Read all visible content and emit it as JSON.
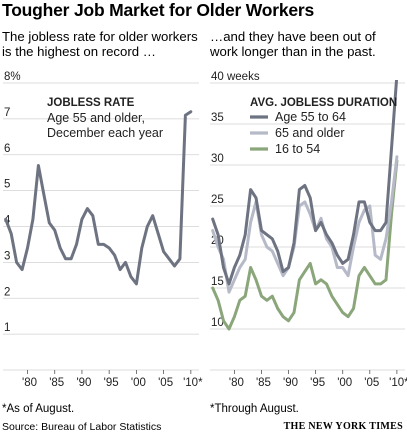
{
  "header": {
    "title": "Tougher Job Market for Older Workers"
  },
  "panels": {
    "left": {
      "subtitle_line1": "The jobless rate for older workers",
      "subtitle_line2": "is the highest on record …",
      "footnote": "*As of August."
    },
    "right": {
      "subtitle_line1": "…and they have been out of",
      "subtitle_line2": "work longer than in the past.",
      "footnote": "*Through August."
    }
  },
  "footer": {
    "source": "Source: Bureau of Labor Statistics",
    "credit": "THE NEW YORK TIMES"
  },
  "chart_data": [
    {
      "type": "line",
      "title": "JOBLESS RATE",
      "subtitle_lines": [
        "Age 55 and older,",
        "December each year"
      ],
      "ylim": [
        0,
        8
      ],
      "y_ticks": [
        0,
        1,
        2,
        3,
        4,
        5,
        6,
        7,
        8
      ],
      "y_tick_labels": [
        "",
        "1",
        "2",
        "3",
        "4",
        "5",
        "6",
        "7",
        "8%"
      ],
      "xlim": [
        1975.5,
        2011.5
      ],
      "x_ticks": [
        1980,
        1985,
        1990,
        1995,
        2000,
        2005,
        2010
      ],
      "x_tick_labels": [
        "'80",
        "'85",
        "'90",
        "'95",
        "'00",
        "'05",
        "'10*"
      ],
      "grid": true,
      "series": [
        {
          "name": "",
          "color": "#6e7382",
          "x": [
            1976,
            1977,
            1978,
            1979,
            1980,
            1981,
            1982,
            1983,
            1984,
            1985,
            1986,
            1987,
            1988,
            1989,
            1990,
            1991,
            1992,
            1993,
            1994,
            1995,
            1996,
            1997,
            1998,
            1999,
            2000,
            2001,
            2002,
            2003,
            2004,
            2005,
            2006,
            2007,
            2008,
            2009,
            2010
          ],
          "values": [
            4.2,
            3.8,
            3.0,
            2.8,
            3.4,
            4.2,
            5.7,
            4.9,
            4.1,
            3.9,
            3.4,
            3.1,
            3.1,
            3.5,
            4.2,
            4.5,
            4.3,
            3.5,
            3.5,
            3.4,
            3.2,
            2.8,
            3.0,
            2.6,
            2.4,
            3.4,
            4.0,
            4.3,
            3.8,
            3.3,
            3.1,
            2.9,
            3.1,
            7.1,
            7.2
          ]
        }
      ]
    },
    {
      "type": "line",
      "title": "AVG. JOBLESS DURATION",
      "ylim": [
        5,
        40
      ],
      "y_ticks": [
        5,
        10,
        15,
        20,
        25,
        30,
        35,
        40
      ],
      "y_tick_labels": [
        "",
        "10",
        "15",
        "20",
        "25",
        "30",
        "35",
        "40 weeks"
      ],
      "xlim": [
        1975.5,
        2011.5
      ],
      "x_ticks": [
        1980,
        1985,
        1990,
        1995,
        2000,
        2005,
        2010
      ],
      "x_tick_labels": [
        "'80",
        "'85",
        "'90",
        "'95",
        "'00",
        "'05",
        "'10*"
      ],
      "grid": true,
      "legend": "top-right",
      "series": [
        {
          "name": "Age 55 to 64",
          "color": "#6e7382",
          "x": [
            1976,
            1977,
            1978,
            1979,
            1980,
            1981,
            1982,
            1983,
            1984,
            1985,
            1986,
            1987,
            1988,
            1989,
            1990,
            1991,
            1992,
            1993,
            1994,
            1995,
            1996,
            1997,
            1998,
            1999,
            2000,
            2001,
            2002,
            2003,
            2004,
            2005,
            2006,
            2007,
            2008,
            2009,
            2010
          ],
          "values": [
            23.4,
            21.5,
            17.5,
            15.5,
            17.5,
            19.0,
            21.5,
            27.0,
            26.0,
            22.0,
            21.5,
            21.0,
            19.5,
            17.0,
            17.5,
            20.5,
            27.0,
            27.5,
            26.0,
            22.0,
            23.0,
            21.5,
            20.5,
            19.0,
            18.0,
            18.5,
            21.5,
            25.5,
            25.5,
            23.0,
            22.0,
            22.0,
            23.0,
            32.0,
            41.0
          ]
        },
        {
          "name": "65 and older",
          "color": "#b6bac8",
          "x": [
            1976,
            1977,
            1978,
            1979,
            1980,
            1981,
            1982,
            1983,
            1984,
            1985,
            1986,
            1987,
            1988,
            1989,
            1990,
            1991,
            1992,
            1993,
            1994,
            1995,
            1996,
            1997,
            1998,
            1999,
            2000,
            2001,
            2002,
            2003,
            2004,
            2005,
            2006,
            2007,
            2008,
            2009,
            2010
          ],
          "values": [
            22.0,
            20.0,
            18.5,
            14.5,
            16.0,
            17.5,
            18.5,
            23.0,
            25.5,
            21.5,
            20.0,
            19.5,
            18.0,
            16.5,
            17.5,
            20.0,
            25.0,
            25.5,
            24.0,
            22.0,
            23.5,
            21.0,
            20.0,
            17.5,
            17.5,
            16.5,
            20.0,
            23.0,
            24.5,
            25.0,
            19.0,
            18.5,
            21.0,
            25.5,
            31.0
          ]
        },
        {
          "name": "16 to 54",
          "color": "#8ba67a",
          "x": [
            1976,
            1977,
            1978,
            1979,
            1980,
            1981,
            1982,
            1983,
            1984,
            1985,
            1986,
            1987,
            1988,
            1989,
            1990,
            1991,
            1992,
            1993,
            1994,
            1995,
            1996,
            1997,
            1998,
            1999,
            2000,
            2001,
            2002,
            2003,
            2004,
            2005,
            2006,
            2007,
            2008,
            2009,
            2010
          ],
          "values": [
            15.0,
            13.5,
            11.0,
            10.0,
            11.5,
            13.5,
            14.0,
            17.5,
            16.0,
            14.0,
            13.5,
            14.0,
            12.5,
            11.5,
            11.0,
            12.0,
            16.0,
            17.0,
            18.0,
            15.5,
            16.0,
            15.5,
            14.0,
            13.0,
            12.0,
            11.5,
            12.5,
            16.5,
            17.5,
            16.5,
            15.5,
            15.5,
            16.0,
            24.0,
            30.5
          ]
        }
      ]
    }
  ]
}
